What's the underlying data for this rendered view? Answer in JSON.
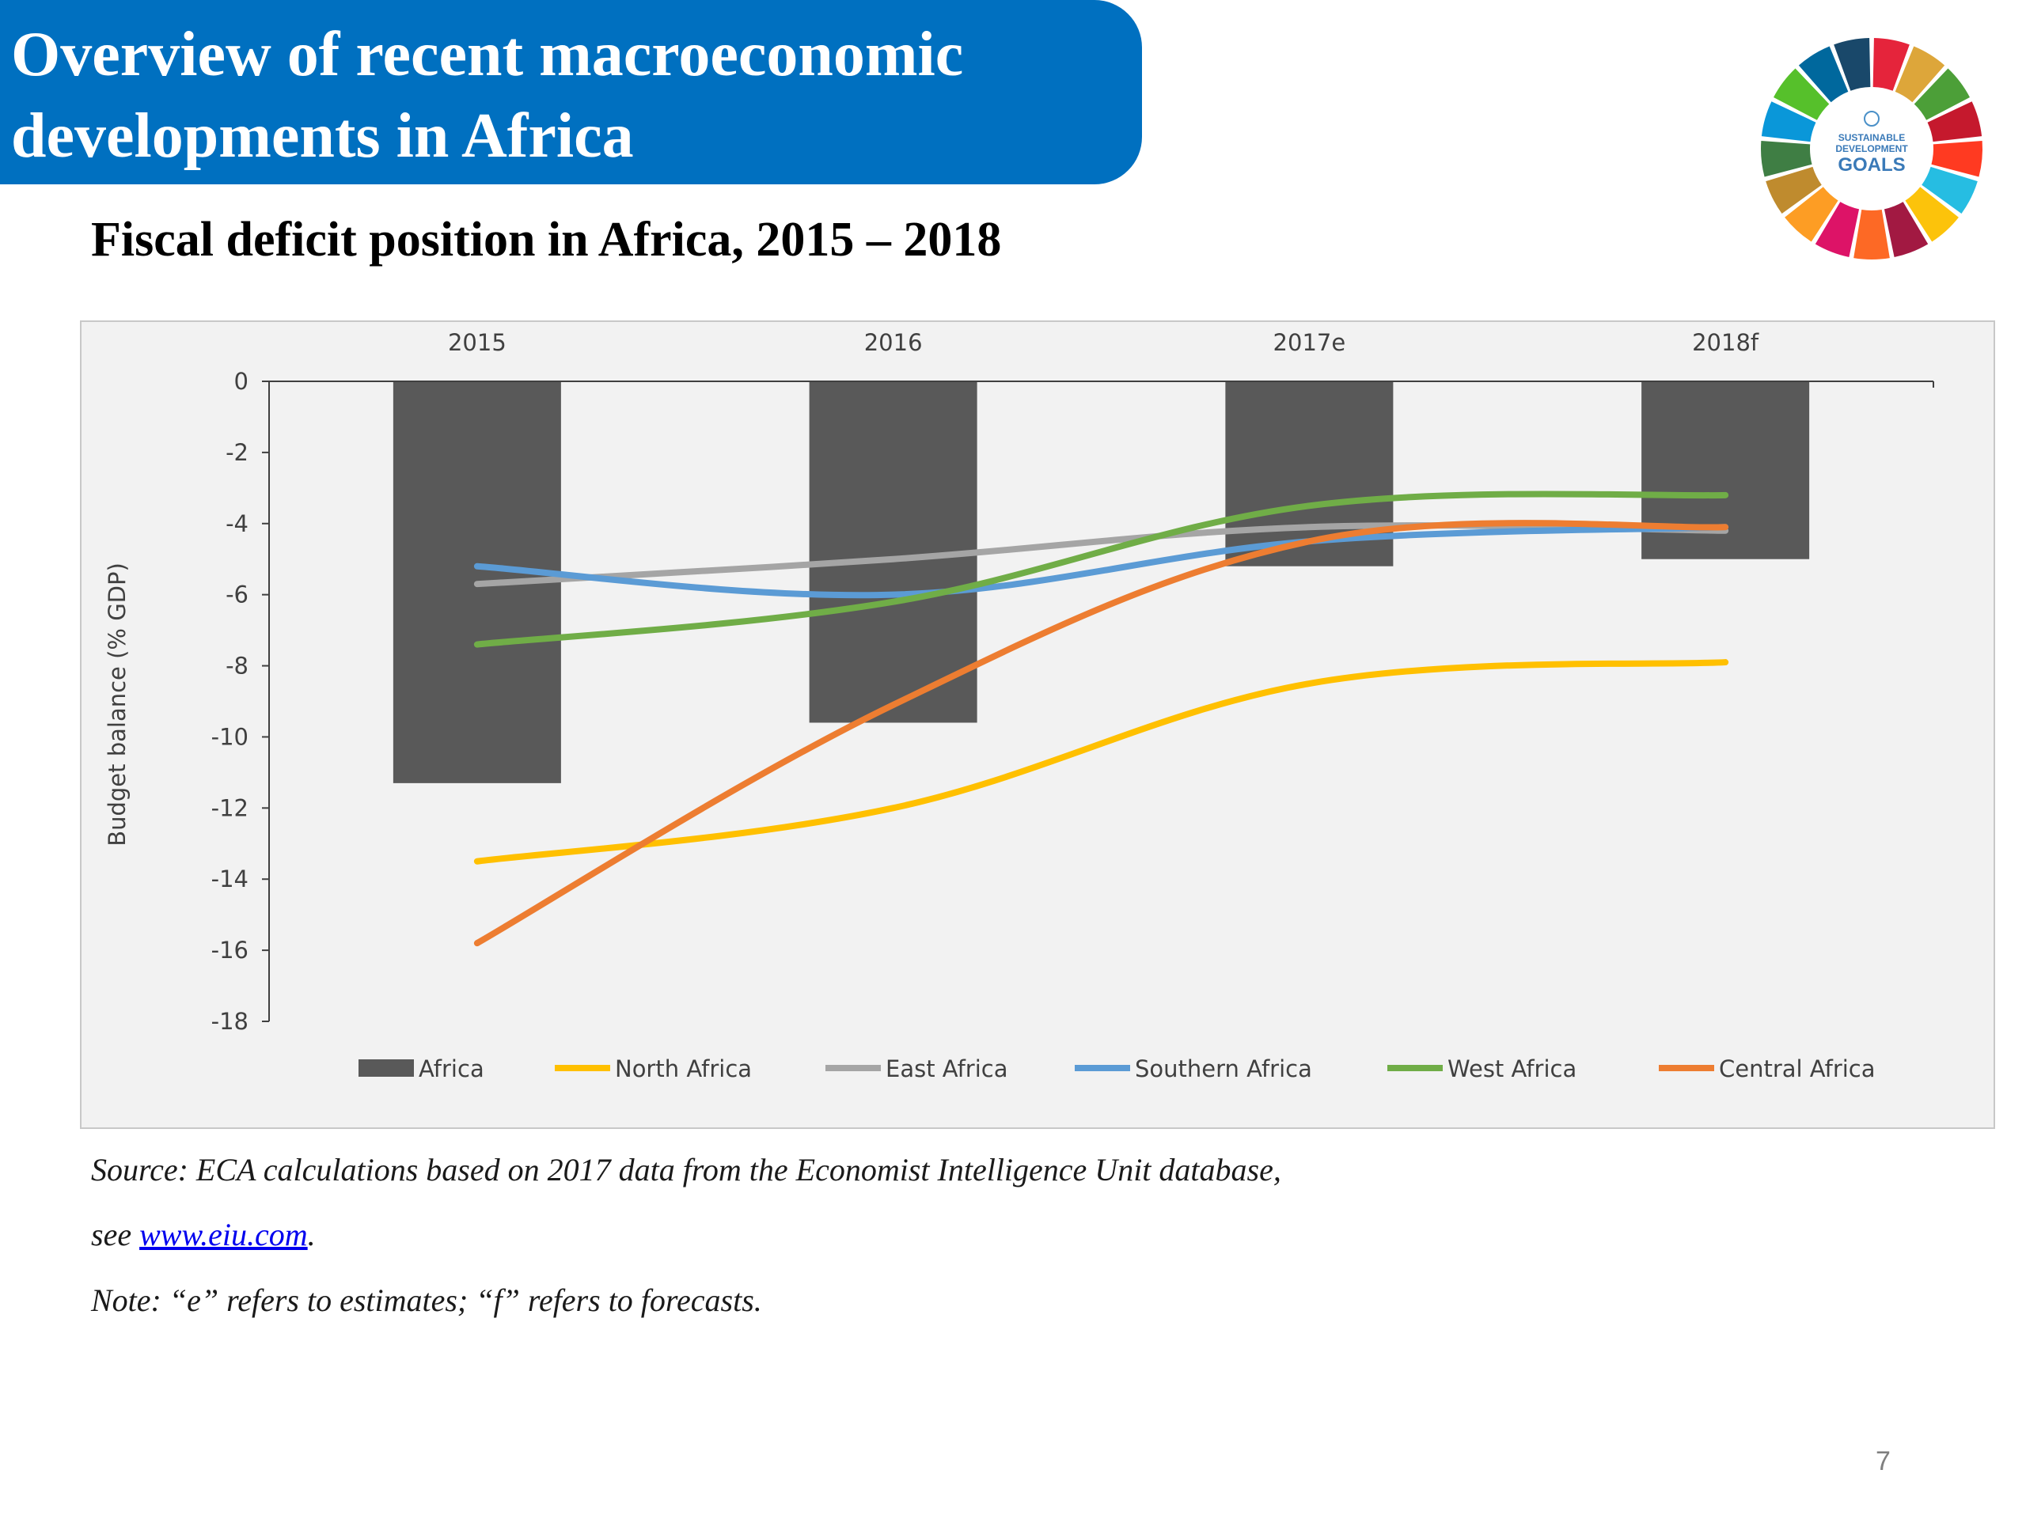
{
  "slide": {
    "title": "Overview of recent macroeconomic developments in Africa",
    "subtitle": "Fiscal deficit position in Africa, 2015 – 2018",
    "page_number": "7",
    "logo_text": [
      "SUSTAINABLE",
      "DEVELOPMENT",
      "GOALS"
    ]
  },
  "footnotes": {
    "source_prefix": "Source: ECA calculations based on 2017 data from the Economist Intelligence Unit database,",
    "see_label": "see ",
    "link_text": "www.eiu.com",
    "link_suffix": ".",
    "note": "Note: “e” refers to estimates; “f” refers to forecasts."
  },
  "colors": {
    "banner": "#0070c0",
    "Africa": "#595959",
    "North Africa": "#ffc000",
    "East Africa": "#a5a5a5",
    "Southern Africa": "#5b9bd5",
    "West Africa": "#70ad47",
    "Central Africa": "#ed7d31",
    "chart_background": "#f2f2f2"
  },
  "chart_data": {
    "type": "bar",
    "categories": [
      "2015",
      "2016",
      "2017e",
      "2018f"
    ],
    "ylabel": "Budget balance (% GDP)",
    "xlabel": "",
    "ylim": [
      -18,
      0
    ],
    "yticks": [
      0,
      -2,
      -4,
      -6,
      -8,
      -10,
      -12,
      -14,
      -16,
      -18
    ],
    "x_axis_position": "top",
    "legend_position": "bottom",
    "grid": false,
    "bar_series": {
      "name": "Africa",
      "values": [
        -11.3,
        -9.6,
        -5.2,
        -5.0
      ]
    },
    "line_series": [
      {
        "name": "North Africa",
        "values": [
          -13.5,
          -12.0,
          -8.5,
          -7.9
        ]
      },
      {
        "name": "East Africa",
        "values": [
          -5.7,
          -5.0,
          -4.1,
          -4.2
        ]
      },
      {
        "name": "Southern Africa",
        "values": [
          -5.2,
          -6.0,
          -4.5,
          -4.1
        ]
      },
      {
        "name": "West Africa",
        "values": [
          -7.4,
          -6.2,
          -3.5,
          -3.2
        ]
      },
      {
        "name": "Central Africa",
        "values": [
          -15.8,
          -9.1,
          -4.5,
          -4.1
        ]
      }
    ],
    "legend": [
      "Africa",
      "North Africa",
      "East Africa",
      "Southern Africa",
      "West  Africa",
      "Central Africa"
    ]
  }
}
